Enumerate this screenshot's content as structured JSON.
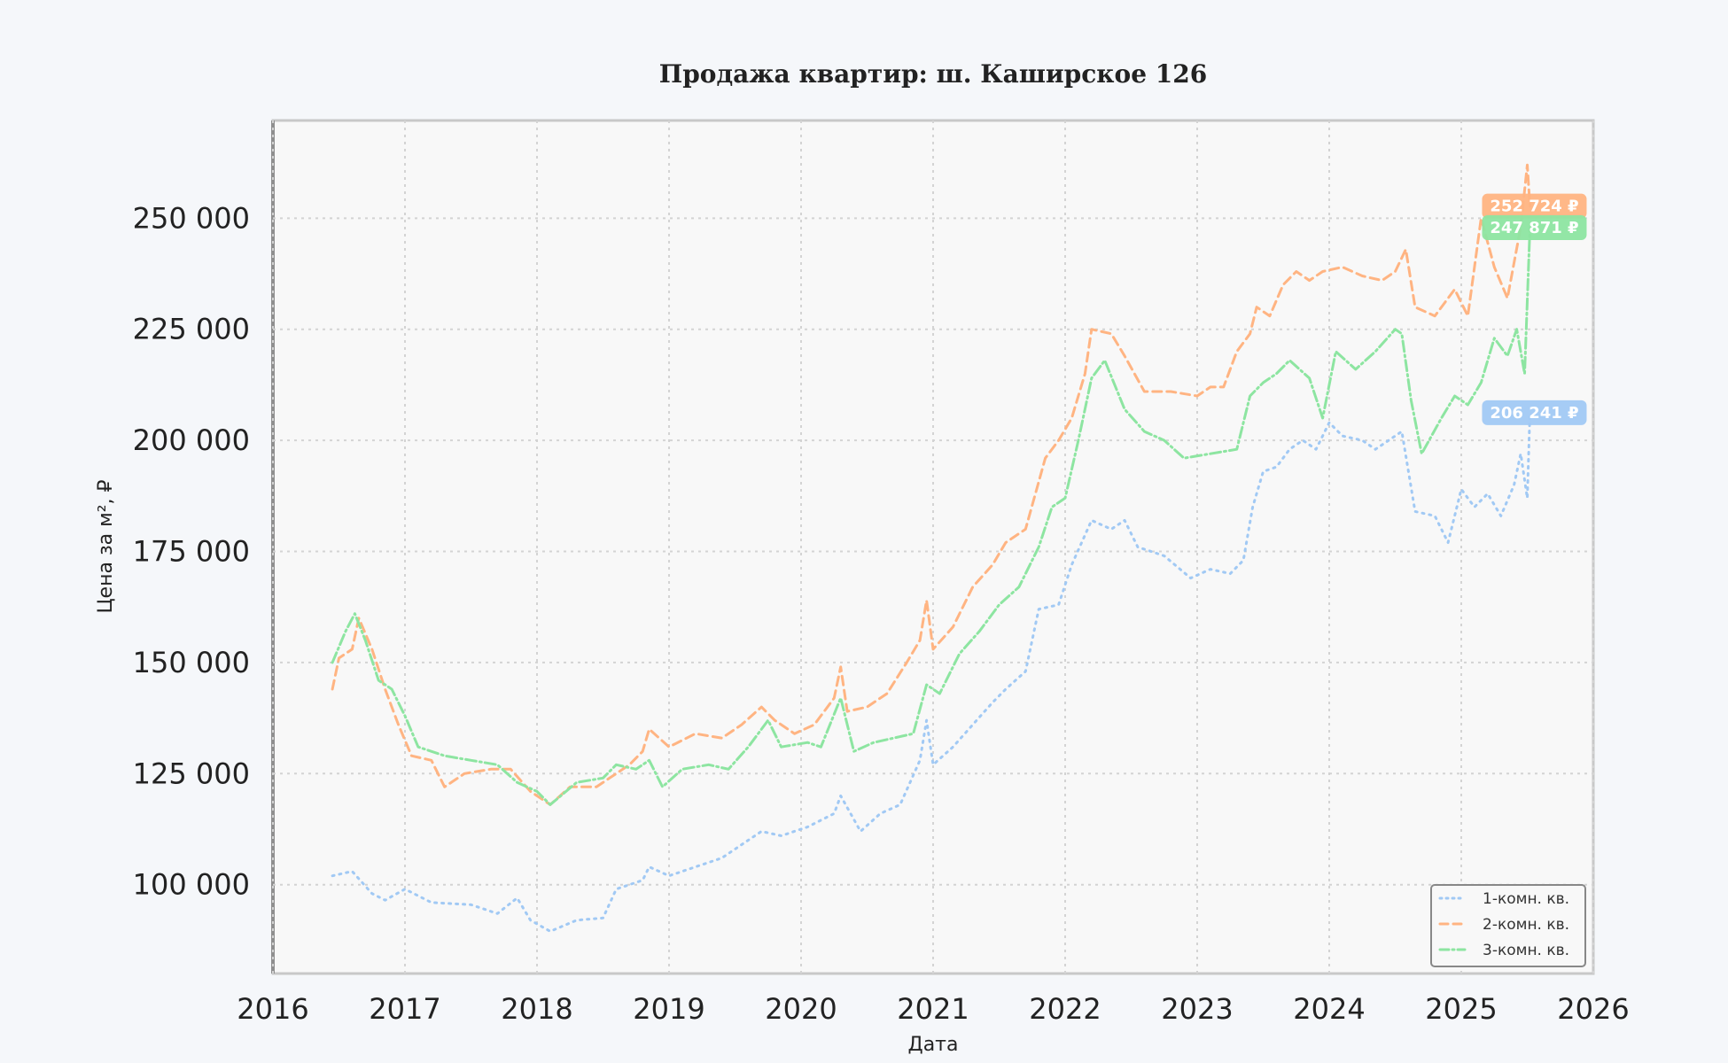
{
  "chart_data": {
    "type": "line",
    "title": "Продажа квартир: ш. Каширское 126",
    "xlabel": "Дата",
    "ylabel": "Цена за м², ₽",
    "xlim": [
      2016,
      2026
    ],
    "ylim": [
      80000,
      272000
    ],
    "x_ticks": [
      2016,
      2017,
      2018,
      2019,
      2020,
      2021,
      2022,
      2023,
      2024,
      2025,
      2026
    ],
    "y_ticks": [
      100000,
      125000,
      150000,
      175000,
      200000,
      225000,
      250000
    ],
    "y_tick_labels": [
      "100 000",
      "125 000",
      "150 000",
      "175 000",
      "200 000",
      "225 000",
      "250 000"
    ],
    "x_tick_labels": [
      "2016",
      "2017",
      "2018",
      "2019",
      "2020",
      "2021",
      "2022",
      "2023",
      "2024",
      "2025",
      "2026"
    ],
    "grid": true,
    "legend_position": "bottom-right",
    "series": [
      {
        "name": "1-комн. кв.",
        "color": "#a1c9f4",
        "dash": "dotted",
        "end_label": "206 241 ₽",
        "points": [
          [
            2016.45,
            102000
          ],
          [
            2016.6,
            103000
          ],
          [
            2016.75,
            98000
          ],
          [
            2016.85,
            96500
          ],
          [
            2017.0,
            99000
          ],
          [
            2017.2,
            96000
          ],
          [
            2017.5,
            95500
          ],
          [
            2017.7,
            93500
          ],
          [
            2017.85,
            97000
          ],
          [
            2017.95,
            92000
          ],
          [
            2018.1,
            89500
          ],
          [
            2018.3,
            92000
          ],
          [
            2018.5,
            92500
          ],
          [
            2018.6,
            99000
          ],
          [
            2018.8,
            101000
          ],
          [
            2018.85,
            104000
          ],
          [
            2019.0,
            102000
          ],
          [
            2019.2,
            104000
          ],
          [
            2019.4,
            106000
          ],
          [
            2019.55,
            109000
          ],
          [
            2019.7,
            112000
          ],
          [
            2019.85,
            111000
          ],
          [
            2020.05,
            113000
          ],
          [
            2020.25,
            116000
          ],
          [
            2020.3,
            120000
          ],
          [
            2020.45,
            112000
          ],
          [
            2020.6,
            116000
          ],
          [
            2020.75,
            118000
          ],
          [
            2020.9,
            128000
          ],
          [
            2020.95,
            137000
          ],
          [
            2021.0,
            127000
          ],
          [
            2021.15,
            131000
          ],
          [
            2021.3,
            136000
          ],
          [
            2021.45,
            141000
          ],
          [
            2021.55,
            144000
          ],
          [
            2021.7,
            148000
          ],
          [
            2021.8,
            162000
          ],
          [
            2021.95,
            163000
          ],
          [
            2022.05,
            172000
          ],
          [
            2022.2,
            182000
          ],
          [
            2022.35,
            180000
          ],
          [
            2022.45,
            182000
          ],
          [
            2022.55,
            176000
          ],
          [
            2022.75,
            174000
          ],
          [
            2022.95,
            169000
          ],
          [
            2023.1,
            171000
          ],
          [
            2023.25,
            170000
          ],
          [
            2023.35,
            173000
          ],
          [
            2023.42,
            185000
          ],
          [
            2023.5,
            193000
          ],
          [
            2023.6,
            194000
          ],
          [
            2023.7,
            198000
          ],
          [
            2023.8,
            200000
          ],
          [
            2023.9,
            198000
          ],
          [
            2024.0,
            204000
          ],
          [
            2024.1,
            201000
          ],
          [
            2024.25,
            200000
          ],
          [
            2024.35,
            198000
          ],
          [
            2024.5,
            201000
          ],
          [
            2024.55,
            202000
          ],
          [
            2024.65,
            184000
          ],
          [
            2024.8,
            183000
          ],
          [
            2024.9,
            177000
          ],
          [
            2025.0,
            189000
          ],
          [
            2025.1,
            185000
          ],
          [
            2025.2,
            188000
          ],
          [
            2025.3,
            183000
          ],
          [
            2025.4,
            190000
          ],
          [
            2025.45,
            197000
          ],
          [
            2025.5,
            187000
          ],
          [
            2025.52,
            206241
          ]
        ]
      },
      {
        "name": "2-комн. кв.",
        "color": "#ffb482",
        "dash": "dashed",
        "end_label": "252 724 ₽",
        "points": [
          [
            2016.45,
            144000
          ],
          [
            2016.5,
            151000
          ],
          [
            2016.6,
            153000
          ],
          [
            2016.65,
            160000
          ],
          [
            2016.75,
            153000
          ],
          [
            2016.85,
            144000
          ],
          [
            2016.95,
            136000
          ],
          [
            2017.05,
            129000
          ],
          [
            2017.2,
            128000
          ],
          [
            2017.3,
            122000
          ],
          [
            2017.45,
            125000
          ],
          [
            2017.65,
            126000
          ],
          [
            2017.8,
            126000
          ],
          [
            2017.95,
            121000
          ],
          [
            2018.1,
            118000
          ],
          [
            2018.25,
            122000
          ],
          [
            2018.45,
            122000
          ],
          [
            2018.55,
            124000
          ],
          [
            2018.7,
            127000
          ],
          [
            2018.8,
            130000
          ],
          [
            2018.85,
            135000
          ],
          [
            2019.0,
            131000
          ],
          [
            2019.2,
            134000
          ],
          [
            2019.4,
            133000
          ],
          [
            2019.55,
            136000
          ],
          [
            2019.7,
            140000
          ],
          [
            2019.8,
            137000
          ],
          [
            2019.95,
            134000
          ],
          [
            2020.1,
            136000
          ],
          [
            2020.25,
            142000
          ],
          [
            2020.3,
            149000
          ],
          [
            2020.35,
            139000
          ],
          [
            2020.5,
            140000
          ],
          [
            2020.65,
            143000
          ],
          [
            2020.8,
            150000
          ],
          [
            2020.9,
            155000
          ],
          [
            2020.95,
            164000
          ],
          [
            2021.0,
            153000
          ],
          [
            2021.15,
            158000
          ],
          [
            2021.3,
            167000
          ],
          [
            2021.45,
            172000
          ],
          [
            2021.55,
            177000
          ],
          [
            2021.7,
            180000
          ],
          [
            2021.85,
            196000
          ],
          [
            2021.95,
            200000
          ],
          [
            2022.05,
            205000
          ],
          [
            2022.15,
            215000
          ],
          [
            2022.2,
            225000
          ],
          [
            2022.35,
            224000
          ],
          [
            2022.45,
            219000
          ],
          [
            2022.6,
            211000
          ],
          [
            2022.8,
            211000
          ],
          [
            2023.0,
            210000
          ],
          [
            2023.1,
            212000
          ],
          [
            2023.2,
            212000
          ],
          [
            2023.3,
            220000
          ],
          [
            2023.4,
            224000
          ],
          [
            2023.45,
            230000
          ],
          [
            2023.55,
            228000
          ],
          [
            2023.65,
            235000
          ],
          [
            2023.75,
            238000
          ],
          [
            2023.85,
            236000
          ],
          [
            2023.95,
            238000
          ],
          [
            2024.1,
            239000
          ],
          [
            2024.25,
            237000
          ],
          [
            2024.4,
            236000
          ],
          [
            2024.5,
            238000
          ],
          [
            2024.58,
            243000
          ],
          [
            2024.65,
            230000
          ],
          [
            2024.8,
            228000
          ],
          [
            2024.95,
            234000
          ],
          [
            2025.05,
            228000
          ],
          [
            2025.15,
            250000
          ],
          [
            2025.25,
            239000
          ],
          [
            2025.35,
            232000
          ],
          [
            2025.45,
            248000
          ],
          [
            2025.5,
            262000
          ],
          [
            2025.52,
            252724
          ]
        ]
      },
      {
        "name": "3-комн. кв.",
        "color": "#8de5a1",
        "dash": "dashdot",
        "end_label": "247 871 ₽",
        "points": [
          [
            2016.45,
            150000
          ],
          [
            2016.55,
            157000
          ],
          [
            2016.62,
            161000
          ],
          [
            2016.7,
            155000
          ],
          [
            2016.8,
            146000
          ],
          [
            2016.9,
            144000
          ],
          [
            2017.0,
            138000
          ],
          [
            2017.1,
            131000
          ],
          [
            2017.3,
            129000
          ],
          [
            2017.5,
            128000
          ],
          [
            2017.7,
            127000
          ],
          [
            2017.85,
            123000
          ],
          [
            2018.0,
            121000
          ],
          [
            2018.1,
            118000
          ],
          [
            2018.3,
            123000
          ],
          [
            2018.5,
            124000
          ],
          [
            2018.6,
            127000
          ],
          [
            2018.75,
            126000
          ],
          [
            2018.85,
            128000
          ],
          [
            2018.95,
            122000
          ],
          [
            2019.1,
            126000
          ],
          [
            2019.3,
            127000
          ],
          [
            2019.45,
            126000
          ],
          [
            2019.6,
            131000
          ],
          [
            2019.75,
            137000
          ],
          [
            2019.85,
            131000
          ],
          [
            2020.05,
            132000
          ],
          [
            2020.15,
            131000
          ],
          [
            2020.3,
            142000
          ],
          [
            2020.4,
            130000
          ],
          [
            2020.55,
            132000
          ],
          [
            2020.7,
            133000
          ],
          [
            2020.85,
            134000
          ],
          [
            2020.95,
            145000
          ],
          [
            2021.05,
            143000
          ],
          [
            2021.2,
            152000
          ],
          [
            2021.35,
            157000
          ],
          [
            2021.5,
            163000
          ],
          [
            2021.65,
            167000
          ],
          [
            2021.8,
            176000
          ],
          [
            2021.9,
            185000
          ],
          [
            2022.0,
            187000
          ],
          [
            2022.1,
            200000
          ],
          [
            2022.2,
            214000
          ],
          [
            2022.3,
            218000
          ],
          [
            2022.45,
            207000
          ],
          [
            2022.6,
            202000
          ],
          [
            2022.75,
            200000
          ],
          [
            2022.9,
            196000
          ],
          [
            2023.1,
            197000
          ],
          [
            2023.3,
            198000
          ],
          [
            2023.4,
            210000
          ],
          [
            2023.5,
            213000
          ],
          [
            2023.6,
            215000
          ],
          [
            2023.7,
            218000
          ],
          [
            2023.85,
            214000
          ],
          [
            2023.95,
            205000
          ],
          [
            2024.05,
            220000
          ],
          [
            2024.2,
            216000
          ],
          [
            2024.35,
            220000
          ],
          [
            2024.5,
            225000
          ],
          [
            2024.55,
            224000
          ],
          [
            2024.62,
            209000
          ],
          [
            2024.7,
            197000
          ],
          [
            2024.85,
            205000
          ],
          [
            2024.95,
            210000
          ],
          [
            2025.05,
            208000
          ],
          [
            2025.15,
            213000
          ],
          [
            2025.25,
            223000
          ],
          [
            2025.35,
            219000
          ],
          [
            2025.42,
            225000
          ],
          [
            2025.48,
            215000
          ],
          [
            2025.52,
            247871
          ]
        ]
      }
    ]
  }
}
